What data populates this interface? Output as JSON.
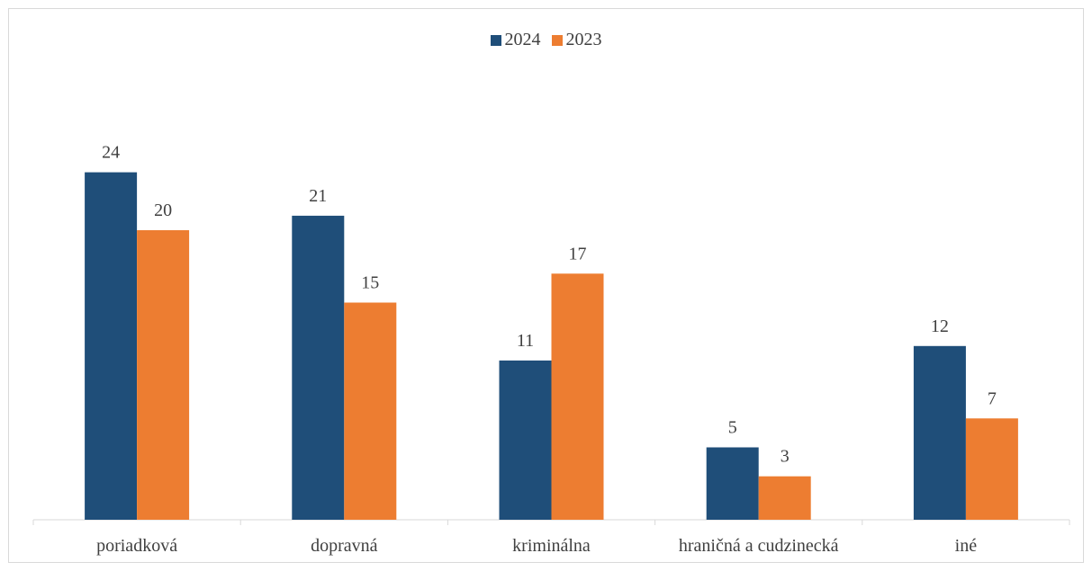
{
  "chart_data": {
    "type": "bar",
    "title": "",
    "xlabel": "",
    "ylabel": "",
    "categories": [
      "poriadková",
      "dopravná",
      "kriminálna",
      "hraničná a cudzinecká",
      "iné"
    ],
    "series": [
      {
        "name": "2024",
        "values": [
          24,
          21,
          11,
          5,
          12
        ],
        "color": "#1f4e79"
      },
      {
        "name": "2023",
        "values": [
          20,
          15,
          17,
          3,
          7
        ],
        "color": "#ed7d31"
      }
    ],
    "ylim": [
      0,
      24
    ],
    "grid": false,
    "legend_position": "top-center",
    "data_labels": true
  }
}
